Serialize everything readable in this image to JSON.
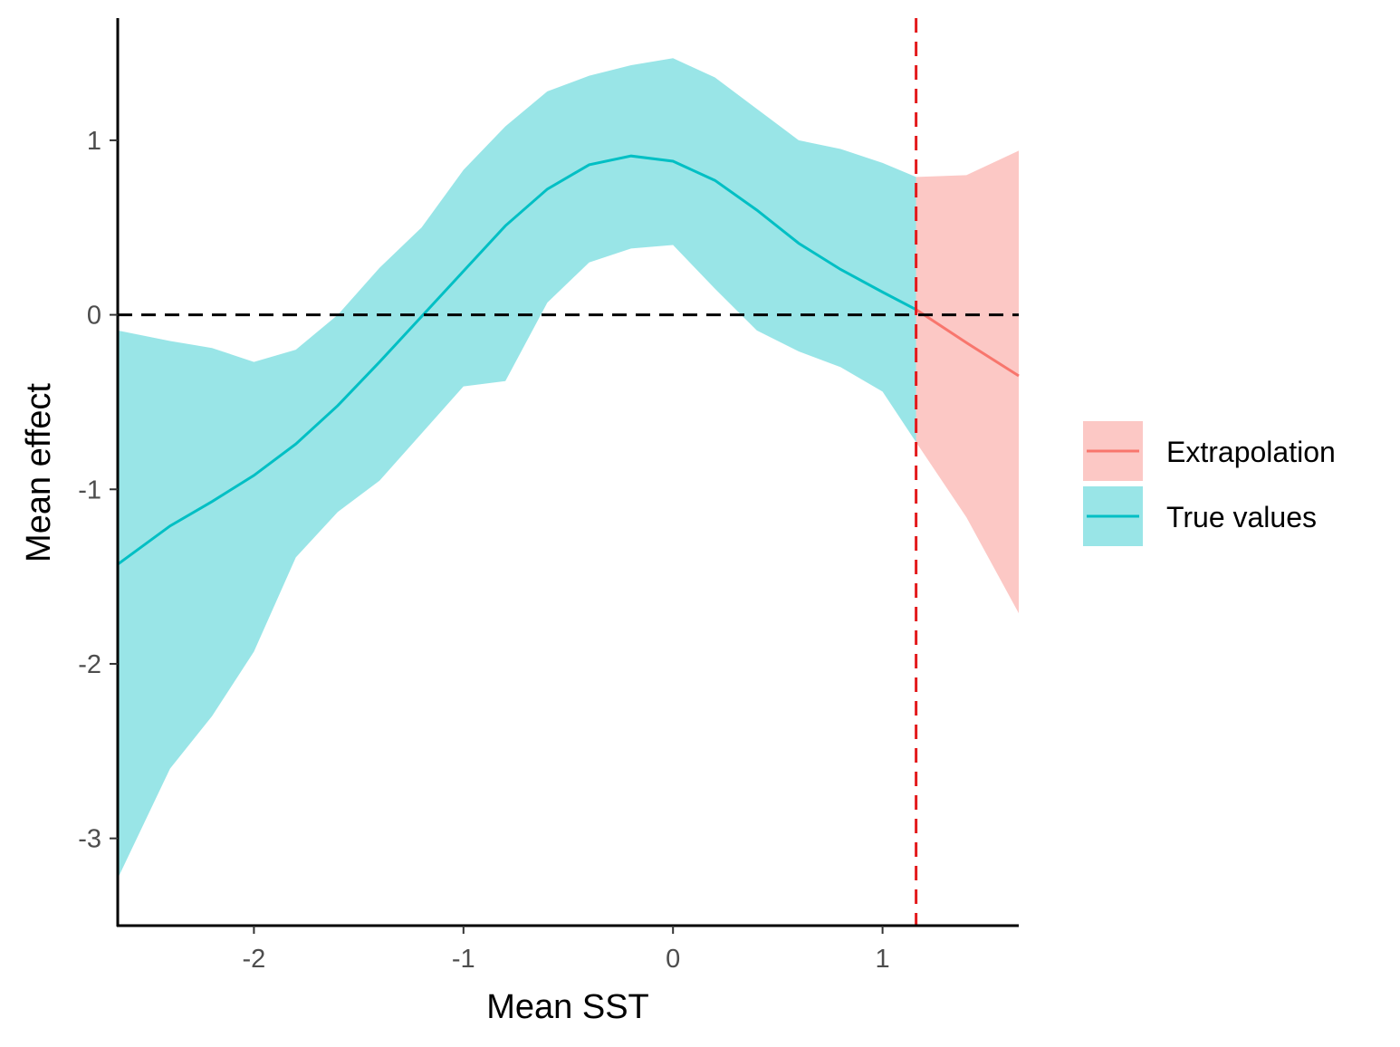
{
  "chart_data": {
    "type": "line",
    "xlabel": "Mean SST",
    "ylabel": "Mean effect",
    "xlim": [
      -2.65,
      1.65
    ],
    "ylim": [
      -3.5,
      1.7
    ],
    "x_ticks": [
      -2,
      -1,
      0,
      1
    ],
    "x_tick_labels": [
      "-2",
      "-1",
      "0",
      "1"
    ],
    "y_ticks": [
      -3,
      -2,
      -1,
      0,
      1
    ],
    "y_tick_labels": [
      "-3",
      "-2",
      "-1",
      "0",
      "1"
    ],
    "grid": false,
    "legend_position": "right",
    "reference_lines": {
      "horizontal": {
        "y": 0,
        "color": "#000000",
        "style": "dashed"
      },
      "vertical": {
        "x": 1.16,
        "color": "#e31a1c",
        "style": "dashed"
      }
    },
    "series": [
      {
        "name": "Extrapolation",
        "line_color": "#f8766d",
        "ribbon_color": "#f8766d",
        "ribbon_opacity": 0.4,
        "x": [
          1.16,
          1.4,
          1.65
        ],
        "y": [
          0.03,
          -0.16,
          -0.35
        ],
        "lower": [
          -0.73,
          -1.16,
          -1.71
        ],
        "upper": [
          0.79,
          0.8,
          0.94
        ]
      },
      {
        "name": "True values",
        "line_color": "#00bfc4",
        "ribbon_color": "#00bfc4",
        "ribbon_opacity": 0.4,
        "x": [
          -2.65,
          -2.4,
          -2.2,
          -2.0,
          -1.8,
          -1.6,
          -1.4,
          -1.2,
          -1.0,
          -0.8,
          -0.6,
          -0.4,
          -0.2,
          0.0,
          0.2,
          0.4,
          0.6,
          0.8,
          1.0,
          1.16
        ],
        "y": [
          -1.43,
          -1.21,
          -1.07,
          -0.92,
          -0.74,
          -0.52,
          -0.27,
          -0.01,
          0.25,
          0.51,
          0.72,
          0.86,
          0.91,
          0.88,
          0.77,
          0.6,
          0.41,
          0.26,
          0.13,
          0.03
        ],
        "lower": [
          -3.23,
          -2.6,
          -2.3,
          -1.93,
          -1.39,
          -1.13,
          -0.95,
          -0.68,
          -0.41,
          -0.38,
          0.07,
          0.3,
          0.38,
          0.4,
          0.15,
          -0.09,
          -0.21,
          -0.3,
          -0.44,
          -0.73
        ],
        "upper": [
          -0.09,
          -0.15,
          -0.19,
          -0.27,
          -0.2,
          0.0,
          0.27,
          0.5,
          0.83,
          1.08,
          1.28,
          1.37,
          1.43,
          1.47,
          1.36,
          1.18,
          1.0,
          0.95,
          0.87,
          0.79
        ]
      }
    ],
    "legend": {
      "items": [
        {
          "label": "Extrapolation",
          "color": "#f8766d"
        },
        {
          "label": "True values",
          "color": "#00bfc4"
        }
      ]
    }
  }
}
